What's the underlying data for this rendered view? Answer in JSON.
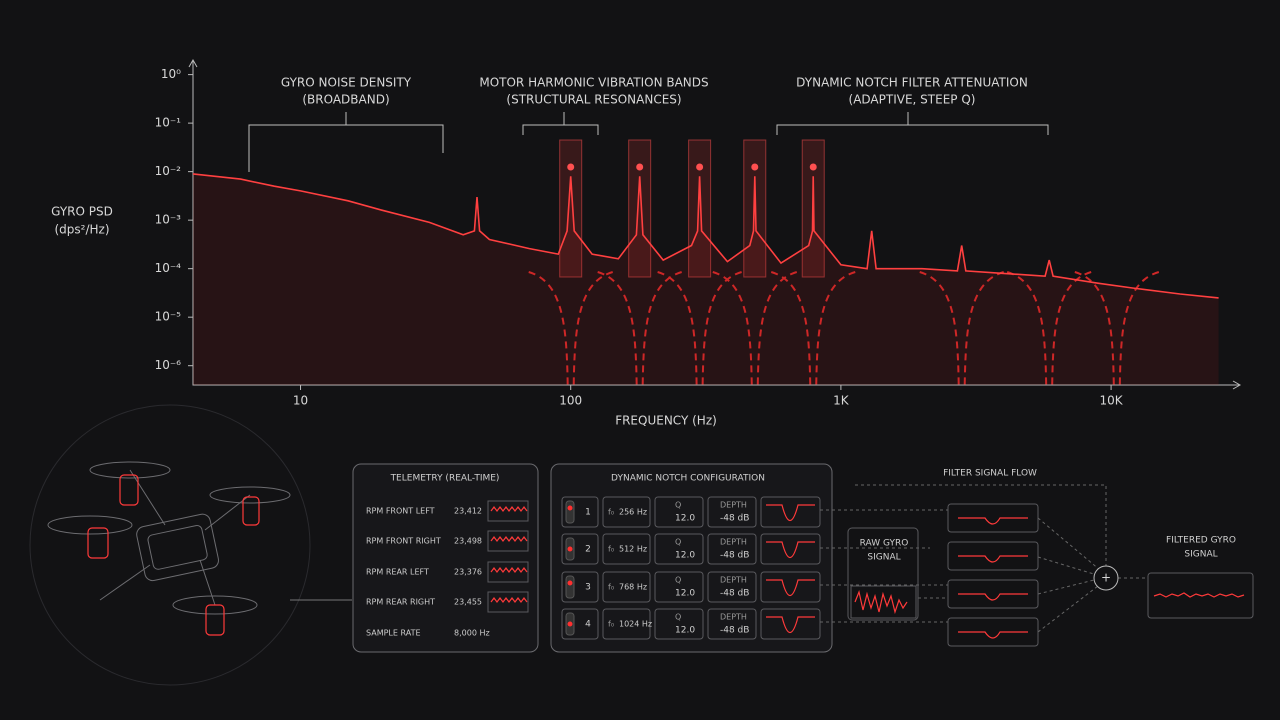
{
  "chart_data": {
    "type": "line",
    "ylabel_lines": [
      "GYRO PSD",
      "(dps²/Hz)"
    ],
    "xlabel": "FREQUENCY (Hz)",
    "log_x": true,
    "log_y": true,
    "xlim": [
      4,
      30000
    ],
    "xticks": [
      10,
      100,
      {
        "value": 1000,
        "label": "1K"
      },
      {
        "value": 10000,
        "label": "10K"
      }
    ],
    "ylim": [
      4e-07,
      2
    ],
    "yticks": [
      {
        "value": 1,
        "label": "10⁰"
      },
      {
        "value": 0.1,
        "label": "10⁻¹"
      },
      {
        "value": 0.01,
        "label": "10⁻²"
      },
      {
        "value": 0.001,
        "label": "10⁻³"
      },
      {
        "value": 0.0001,
        "label": "10⁻⁴"
      },
      {
        "value": 1e-05,
        "label": "10⁻⁵"
      },
      {
        "value": 1e-06,
        "label": "10⁻⁶"
      }
    ],
    "series": [
      {
        "color": "#ff4040",
        "x": [
          4,
          6,
          8,
          10,
          15,
          20,
          30,
          40,
          44,
          45,
          46,
          50,
          70,
          90,
          97,
          100,
          103,
          120,
          150,
          175,
          180,
          185,
          220,
          280,
          295,
          300,
          305,
          380,
          460,
          475,
          480,
          485,
          600,
          760,
          785,
          790,
          795,
          1000,
          1250,
          1300,
          1350,
          2000,
          2700,
          2800,
          2900,
          4000,
          5700,
          5900,
          6100,
          9000,
          12000,
          18000,
          25000
        ],
        "values": [
          0.009,
          0.007,
          0.005,
          0.004,
          0.0025,
          0.0016,
          0.0009,
          0.0005,
          0.0006,
          0.003,
          0.0006,
          0.0004,
          0.00026,
          0.0002,
          0.0006,
          0.008,
          0.0006,
          0.0002,
          0.00016,
          0.0005,
          0.008,
          0.0005,
          0.00015,
          0.0003,
          0.0006,
          0.008,
          0.0006,
          0.00014,
          0.0003,
          0.0006,
          0.008,
          0.0006,
          0.00013,
          0.0003,
          0.0006,
          0.008,
          0.0006,
          0.00012,
          0.0001,
          0.0006,
          0.0001,
          0.0001,
          9e-05,
          0.0003,
          9e-05,
          8e-05,
          7e-05,
          0.00015,
          7e-05,
          5e-05,
          4e-05,
          3e-05,
          2.5e-05
        ]
      }
    ],
    "bands": [
      100,
      180,
      300,
      480,
      790
    ],
    "notches": [
      100,
      180,
      300,
      480,
      790,
      2800,
      5900,
      10500
    ],
    "annotations": [
      [
        "GYRO NOISE DENSITY",
        "(BROADBAND)"
      ],
      [
        "MOTOR HARMONIC VIBRATION BANDS",
        "(STRUCTURAL RESONANCES)"
      ],
      [
        "DYNAMIC NOTCH FILTER ATTENUATION",
        "(ADAPTIVE, STEEP Q)"
      ]
    ]
  },
  "telemetry": {
    "title": "TELEMETRY (REAL-TIME)",
    "rows": [
      {
        "label": "RPM FRONT LEFT",
        "value": "23,412"
      },
      {
        "label": "RPM FRONT RIGHT",
        "value": "23,498"
      },
      {
        "label": "RPM REAR LEFT",
        "value": "23,376"
      },
      {
        "label": "RPM REAR RIGHT",
        "value": "23,455"
      },
      {
        "label": "SAMPLE RATE",
        "value": "8,000 Hz"
      }
    ]
  },
  "notch_config": {
    "title": "DYNAMIC NOTCH CONFIGURATION",
    "f0_label": "f₀",
    "q_label": "Q",
    "depth_label": "DEPTH",
    "rows": [
      {
        "index": "1",
        "f0": "256 Hz",
        "q": "12.0",
        "depth": "-48 dB"
      },
      {
        "index": "2",
        "f0": "512 Hz",
        "q": "12.0",
        "depth": "-48 dB"
      },
      {
        "index": "3",
        "f0": "768 Hz",
        "q": "12.0",
        "depth": "-48 dB"
      },
      {
        "index": "4",
        "f0": "1024 Hz",
        "q": "12.0",
        "depth": "-48 dB"
      }
    ]
  },
  "flow": {
    "title": "FILTER SIGNAL FLOW",
    "raw_lines": [
      "RAW GYRO",
      "SIGNAL"
    ],
    "filtered_lines": [
      "FILTERED GYRO",
      "SIGNAL"
    ],
    "sum_symbol": "+"
  }
}
